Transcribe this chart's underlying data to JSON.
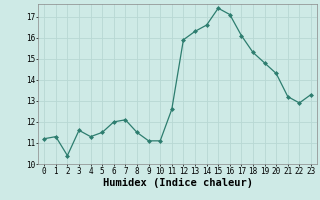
{
  "x": [
    0,
    1,
    2,
    3,
    4,
    5,
    6,
    7,
    8,
    9,
    10,
    11,
    12,
    13,
    14,
    15,
    16,
    17,
    18,
    19,
    20,
    21,
    22,
    23
  ],
  "y": [
    11.2,
    11.3,
    10.4,
    11.6,
    11.3,
    11.5,
    12.0,
    12.1,
    11.5,
    11.1,
    11.1,
    12.6,
    15.9,
    16.3,
    16.6,
    17.4,
    17.1,
    16.1,
    15.3,
    14.8,
    14.3,
    13.2,
    12.9,
    13.3
  ],
  "xlabel": "Humidex (Indice chaleur)",
  "xlim": [
    -0.5,
    23.5
  ],
  "ylim": [
    10.0,
    17.6
  ],
  "yticks": [
    10,
    11,
    12,
    13,
    14,
    15,
    16,
    17
  ],
  "xticks": [
    0,
    1,
    2,
    3,
    4,
    5,
    6,
    7,
    8,
    9,
    10,
    11,
    12,
    13,
    14,
    15,
    16,
    17,
    18,
    19,
    20,
    21,
    22,
    23
  ],
  "line_color": "#2d7d6f",
  "bg_color": "#ceeae6",
  "grid_color": "#b8d8d4",
  "tick_labelsize": 5.5,
  "xlabel_fontsize": 7.5
}
